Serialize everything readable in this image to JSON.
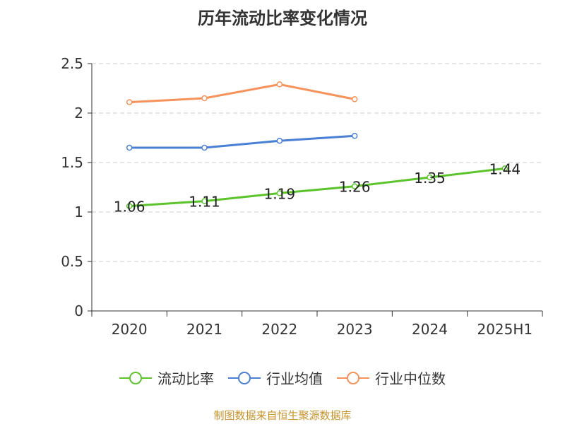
{
  "title": "历年流动比率变化情况",
  "source": "制图数据来自恒生聚源数据库",
  "chart_data": {
    "type": "line",
    "title": "历年流动比率变化情况",
    "categories": [
      "2020",
      "2021",
      "2022",
      "2023",
      "2024",
      "2025H1"
    ],
    "ylim": [
      0,
      2.5
    ],
    "yticks": [
      "0",
      "0.5",
      "1",
      "1.5",
      "2",
      "2.5"
    ],
    "grid": true,
    "legend_position": "bottom",
    "series": [
      {
        "name": "流动比率",
        "color": "#5cc42b",
        "values": [
          1.06,
          1.11,
          1.19,
          1.26,
          1.35,
          1.44
        ],
        "labels": [
          "1.06",
          "1.11",
          "1.19",
          "1.26",
          "1.35",
          "1.44"
        ]
      },
      {
        "name": "行业均值",
        "color": "#4a7fd6",
        "values": [
          1.65,
          1.65,
          1.72,
          1.77,
          null,
          null
        ]
      },
      {
        "name": "行业中位数",
        "color": "#f7925a",
        "values": [
          2.11,
          2.15,
          2.29,
          2.14,
          null,
          null
        ]
      }
    ]
  }
}
